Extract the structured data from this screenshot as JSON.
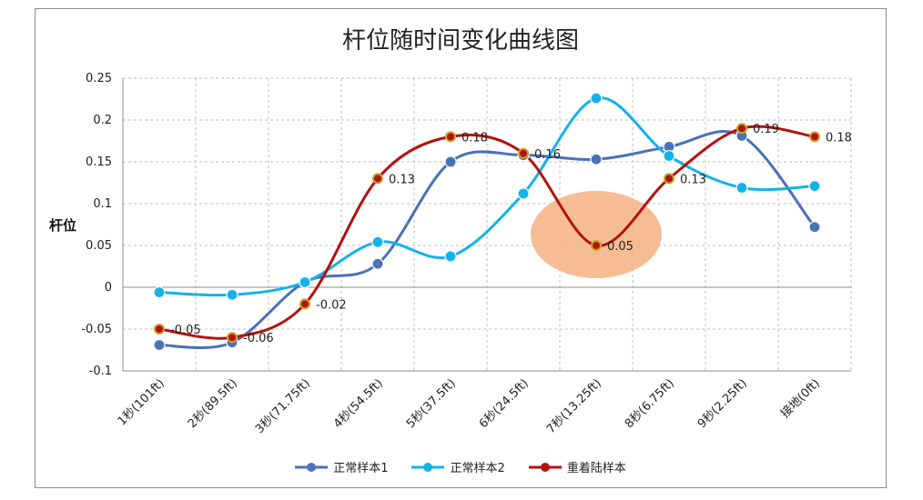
{
  "chart_data": {
    "type": "line",
    "title": "杆位随时间变化曲线图",
    "xlabel": "",
    "ylabel": "杆位",
    "ylim": [
      -0.1,
      0.25
    ],
    "yticks": [
      "0.25",
      "0.2",
      "0.15",
      "0.1",
      "0.05",
      "0",
      "-0.05",
      "-0.1"
    ],
    "categories": [
      "1秒(101ft)",
      "2秒(89.5ft)",
      "3秒(71.75ft)",
      "4秒(54.5ft)",
      "5秒(37.5ft)",
      "6秒(24.5ft)",
      "7秒(13.25ft)",
      "8秒(6.75ft)",
      "9秒(2.25ft)",
      "接地(0ft)"
    ],
    "grid": true,
    "legend_position": "bottom",
    "series": [
      {
        "name": "正常样本1",
        "color": "#4a72b8",
        "values": [
          -0.069,
          -0.066,
          0.006,
          0.028,
          0.15,
          0.158,
          0.153,
          0.168,
          0.181,
          0.072
        ]
      },
      {
        "name": "正常样本2",
        "color": "#14b2e8",
        "values": [
          -0.006,
          -0.009,
          0.006,
          0.054,
          0.037,
          0.112,
          0.226,
          0.157,
          0.119,
          0.121
        ]
      },
      {
        "name": "重着陆样本",
        "color": "#b3130f",
        "values": [
          -0.05,
          -0.06,
          -0.02,
          0.13,
          0.18,
          0.16,
          0.05,
          0.13,
          0.19,
          0.18
        ],
        "labels": [
          "-0.05",
          "-0.06",
          "-0.02",
          "0.13",
          "0.18",
          "0.16",
          "0.05",
          "0.13",
          "0.19",
          "0.18"
        ]
      }
    ],
    "highlight": {
      "category_index": 6,
      "value": 0.05,
      "color": "#f4b183"
    }
  }
}
